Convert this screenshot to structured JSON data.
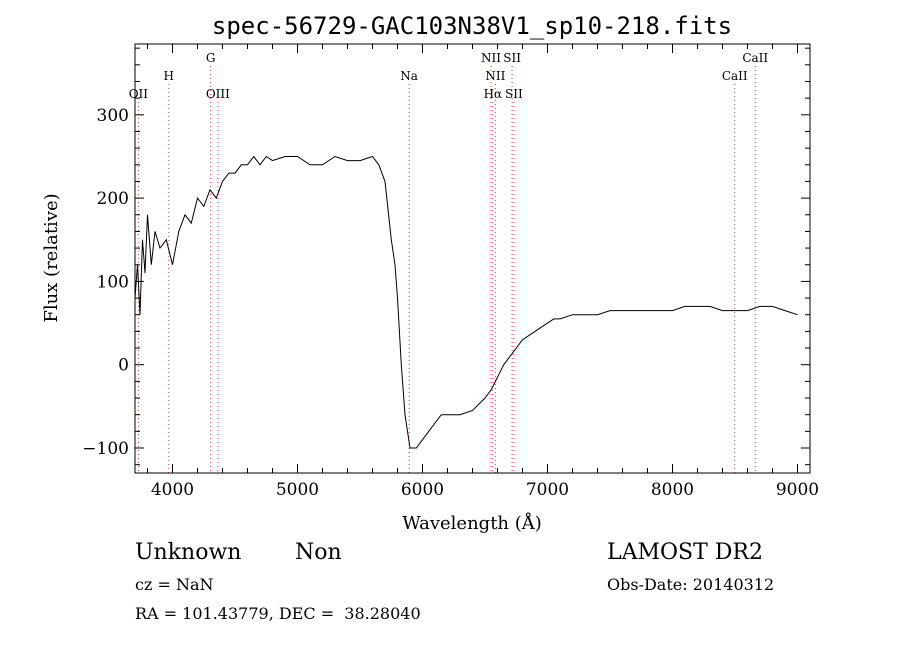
{
  "chart_data": {
    "type": "line",
    "title": "spec-56729-GAC103N38V1_sp10-218.fits",
    "xlabel": "Wavelength (Å)",
    "ylabel": "Flux (relative)",
    "xlim": [
      3700,
      9100
    ],
    "ylim": [
      -130,
      385
    ],
    "xticks": [
      4000,
      5000,
      6000,
      7000,
      8000,
      9000
    ],
    "yticks": [
      -100,
      0,
      100,
      200,
      300
    ],
    "grid": false,
    "series_color": "#000000",
    "line_marker_color": "#d04040",
    "spectral_lines": [
      {
        "name": "OII",
        "wavelength": 3727,
        "row": 3
      },
      {
        "name": "H",
        "wavelength": 3970,
        "row": 2
      },
      {
        "name": "G",
        "wavelength": 4305,
        "row": 1
      },
      {
        "name": "OIII",
        "wavelength": 4363,
        "row": 3
      },
      {
        "name": "Na",
        "wavelength": 5893,
        "row": 2
      },
      {
        "name": "NII",
        "wavelength": 6548,
        "row": 1
      },
      {
        "name": "NII",
        "wavelength": 6583,
        "row": 2
      },
      {
        "name": "Hα",
        "wavelength": 6563,
        "row": 3
      },
      {
        "name": "SII",
        "wavelength": 6717,
        "row": 1
      },
      {
        "name": "SII",
        "wavelength": 6731,
        "row": 3
      },
      {
        "name": "CaII",
        "wavelength": 8498,
        "row": 2
      },
      {
        "name": "CaII",
        "wavelength": 8662,
        "row": 1
      }
    ],
    "series": [
      {
        "x": [
          3700,
          3720,
          3740,
          3760,
          3780,
          3800,
          3830,
          3860,
          3900,
          3950,
          4000,
          4050,
          4100,
          4150,
          4200,
          4250,
          4300,
          4350,
          4400,
          4450,
          4500,
          4550,
          4600,
          4650,
          4700,
          4750,
          4800,
          4900,
          5000,
          5100,
          5200,
          5300,
          5400,
          5500,
          5600,
          5650,
          5700,
          5750,
          5780,
          5800,
          5830,
          5860,
          5880,
          5900,
          5950,
          6000,
          6050,
          6100,
          6150,
          6200,
          6300,
          6400,
          6500,
          6550,
          6600,
          6650,
          6700,
          6750,
          6800,
          6850,
          6900,
          6950,
          7000,
          7050,
          7100,
          7200,
          7300,
          7400,
          7500,
          7600,
          7700,
          7800,
          7900,
          8000,
          8100,
          8200,
          8300,
          8400,
          8500,
          8600,
          8700,
          8800,
          8900,
          9000
        ],
        "y": [
          80,
          120,
          60,
          150,
          110,
          180,
          120,
          160,
          140,
          150,
          120,
          160,
          180,
          170,
          200,
          190,
          210,
          200,
          220,
          230,
          230,
          240,
          240,
          250,
          240,
          250,
          245,
          250,
          250,
          240,
          240,
          250,
          245,
          245,
          250,
          240,
          220,
          150,
          120,
          80,
          0,
          -60,
          -80,
          -100,
          -100,
          -90,
          -80,
          -70,
          -60,
          -60,
          -60,
          -55,
          -40,
          -30,
          -15,
          0,
          10,
          20,
          30,
          35,
          40,
          45,
          50,
          55,
          55,
          60,
          60,
          60,
          65,
          65,
          65,
          65,
          65,
          65,
          70,
          70,
          70,
          65,
          65,
          65,
          70,
          70,
          65,
          60
        ]
      }
    ]
  },
  "info": {
    "class": "Unknown",
    "subclass": "Non",
    "survey": "LAMOST DR2",
    "cz": "cz = NaN",
    "obs_date": "Obs-Date: 20140312",
    "radec": "RA = 101.43779, DEC =  38.28040"
  }
}
